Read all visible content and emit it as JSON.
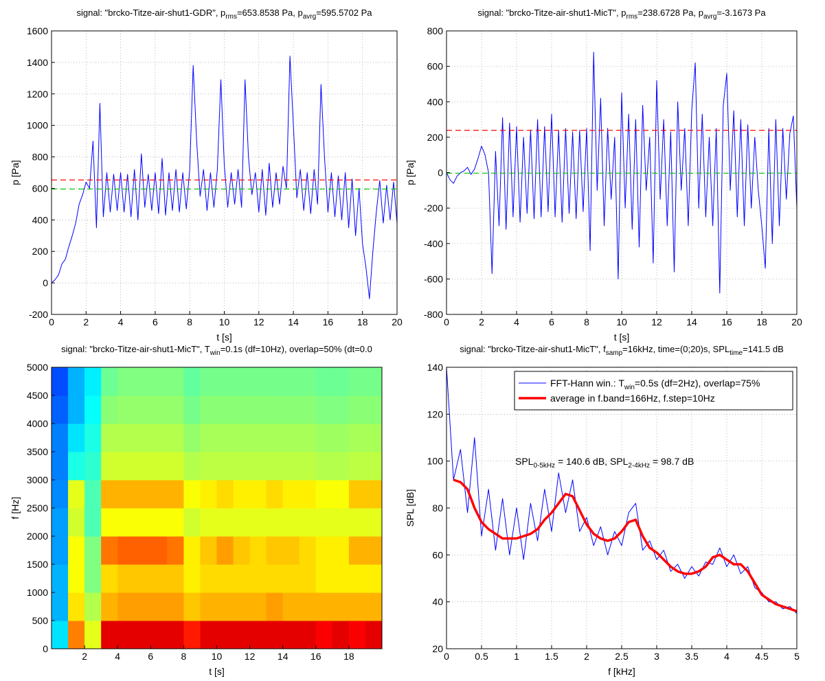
{
  "chart_data": [
    {
      "type": "line",
      "title": [
        "signal: \"brcko-Titze-air-shut1-GDR\",  p",
        "rms",
        "=653.8538 Pa,  p",
        "avrg",
        "=595.5702 Pa"
      ],
      "xlabel": "t [s]",
      "ylabel": "p [Pa]",
      "xlim": [
        0,
        20
      ],
      "ylim": [
        -200,
        1600
      ],
      "xticks": [
        0,
        2,
        4,
        6,
        8,
        10,
        12,
        14,
        16,
        18,
        20
      ],
      "yticks": [
        -200,
        0,
        200,
        400,
        600,
        800,
        1000,
        1200,
        1400,
        1600
      ],
      "grid": true,
      "x": [
        0,
        0.2,
        0.4,
        0.6,
        0.8,
        1,
        1.2,
        1.4,
        1.6,
        1.8,
        2,
        2.2,
        2.4,
        2.6,
        2.8,
        3,
        3.2,
        3.4,
        3.6,
        3.8,
        4,
        4.2,
        4.4,
        4.6,
        4.8,
        5,
        5.2,
        5.4,
        5.6,
        5.8,
        6,
        6.2,
        6.4,
        6.6,
        6.8,
        7,
        7.2,
        7.4,
        7.6,
        7.8,
        8,
        8.2,
        8.4,
        8.6,
        8.8,
        9,
        9.2,
        9.4,
        9.6,
        9.8,
        10,
        10.2,
        10.4,
        10.6,
        10.8,
        11,
        11.2,
        11.4,
        11.6,
        11.8,
        12,
        12.2,
        12.4,
        12.6,
        12.8,
        13,
        13.2,
        13.4,
        13.6,
        13.8,
        14,
        14.2,
        14.4,
        14.6,
        14.8,
        15,
        15.2,
        15.4,
        15.6,
        15.8,
        16,
        16.2,
        16.4,
        16.6,
        16.8,
        17,
        17.2,
        17.4,
        17.6,
        17.8,
        18,
        18.2,
        18.4,
        18.6,
        18.8,
        19,
        19.2,
        19.4,
        19.6,
        19.8,
        20
      ],
      "series": [
        {
          "color": "#0000ff",
          "values": [
            0,
            20,
            50,
            120,
            150,
            230,
            300,
            380,
            500,
            560,
            640,
            600,
            900,
            350,
            1140,
            420,
            700,
            450,
            690,
            460,
            700,
            450,
            690,
            420,
            720,
            400,
            820,
            480,
            690,
            460,
            700,
            440,
            790,
            430,
            700,
            460,
            720,
            450,
            700,
            470,
            720,
            1380,
            900,
            550,
            720,
            460,
            700,
            480,
            720,
            1290,
            750,
            480,
            700,
            500,
            720,
            480,
            1290,
            800,
            560,
            700,
            450,
            720,
            430,
            760,
            480,
            700,
            500,
            740,
            600,
            1440,
            1000,
            540,
            720,
            460,
            700,
            440,
            720,
            500,
            1260,
            800,
            450,
            700,
            420,
            680,
            400,
            700,
            350,
            660,
            300,
            600,
            250,
            100,
            -100,
            200,
            450,
            650,
            380,
            620,
            400,
            640,
            380
          ]
        }
      ],
      "hlines": [
        {
          "value": 653.8538,
          "color": "#ff0000"
        },
        {
          "value": 595.5702,
          "color": "#00cc00"
        }
      ]
    },
    {
      "type": "line",
      "title": [
        "signal: \"brcko-Titze-air-shut1-MicT\",  p",
        "rms",
        "=238.6728 Pa,  p",
        "avrg",
        "=-3.1673 Pa"
      ],
      "xlabel": "t [s]",
      "ylabel": "p [Pa]",
      "xlim": [
        0,
        20
      ],
      "ylim": [
        -800,
        800
      ],
      "xticks": [
        0,
        2,
        4,
        6,
        8,
        10,
        12,
        14,
        16,
        18,
        20
      ],
      "yticks": [
        -800,
        -600,
        -400,
        -200,
        0,
        200,
        400,
        600,
        800
      ],
      "grid": true,
      "x": [
        0,
        0.2,
        0.4,
        0.6,
        0.8,
        1,
        1.2,
        1.4,
        1.6,
        1.8,
        2,
        2.2,
        2.4,
        2.6,
        2.8,
        3,
        3.2,
        3.4,
        3.6,
        3.8,
        4,
        4.2,
        4.4,
        4.6,
        4.8,
        5,
        5.2,
        5.4,
        5.6,
        5.8,
        6,
        6.2,
        6.4,
        6.6,
        6.8,
        7,
        7.2,
        7.4,
        7.6,
        7.8,
        8,
        8.2,
        8.4,
        8.6,
        8.8,
        9,
        9.2,
        9.4,
        9.6,
        9.8,
        10,
        10.2,
        10.4,
        10.6,
        10.8,
        11,
        11.2,
        11.4,
        11.6,
        11.8,
        12,
        12.2,
        12.4,
        12.6,
        12.8,
        13,
        13.2,
        13.4,
        13.6,
        13.8,
        14,
        14.2,
        14.4,
        14.6,
        14.8,
        15,
        15.2,
        15.4,
        15.6,
        15.8,
        16,
        16.2,
        16.4,
        16.6,
        16.8,
        17,
        17.2,
        17.4,
        17.6,
        17.8,
        18,
        18.2,
        18.4,
        18.6,
        18.8,
        19,
        19.2,
        19.4,
        19.6,
        19.8,
        20
      ],
      "series": [
        {
          "color": "#0000ff",
          "values": [
            0,
            -40,
            -60,
            -20,
            0,
            10,
            30,
            -10,
            20,
            80,
            150,
            100,
            0,
            -570,
            120,
            -300,
            310,
            -320,
            280,
            -250,
            260,
            -280,
            200,
            -230,
            240,
            -260,
            300,
            -250,
            260,
            -220,
            330,
            -250,
            240,
            -280,
            250,
            -230,
            230,
            -260,
            240,
            -220,
            250,
            -440,
            680,
            -100,
            420,
            -300,
            250,
            -150,
            200,
            -600,
            450,
            -200,
            330,
            -320,
            300,
            -420,
            380,
            -100,
            200,
            -510,
            520,
            -150,
            300,
            -300,
            230,
            -560,
            400,
            -100,
            250,
            -300,
            350,
            620,
            -200,
            330,
            -250,
            200,
            -300,
            250,
            -680,
            380,
            560,
            -100,
            350,
            -250,
            300,
            -300,
            270,
            -200,
            200,
            -100,
            -300,
            -540,
            250,
            -400,
            300,
            -300,
            250,
            -150,
            220,
            320,
            -200
          ]
        }
      ],
      "hlines": [
        {
          "value": 238.6728,
          "color": "#ff0000"
        },
        {
          "value": -3.1673,
          "color": "#00cc00"
        }
      ]
    },
    {
      "type": "heatmap",
      "title": [
        "signal: \"brcko-Titze-air-shut1-MicT\",  T",
        "win",
        "=0.1s (df=10Hz), overlap=50% (dt=0.0"
      ],
      "xlabel": "t [s]",
      "ylabel": "f [Hz]",
      "xlim": [
        0,
        20
      ],
      "ylim": [
        0,
        5000
      ],
      "xticks": [
        2,
        4,
        6,
        8,
        10,
        12,
        14,
        16,
        18
      ],
      "yticks": [
        0,
        500,
        1000,
        1500,
        2000,
        2500,
        3000,
        3500,
        4000,
        4500,
        5000
      ],
      "colormap": "jet",
      "z": [
        [
          0.35,
          0.75,
          0.6,
          0.9,
          0.9,
          0.9,
          0.9,
          0.9,
          0.85,
          0.9,
          0.9,
          0.9,
          0.9,
          0.9,
          0.9,
          0.9,
          0.88,
          0.9,
          0.88,
          0.9
        ],
        [
          0.3,
          0.65,
          0.55,
          0.7,
          0.72,
          0.72,
          0.72,
          0.72,
          0.68,
          0.7,
          0.7,
          0.7,
          0.7,
          0.72,
          0.7,
          0.7,
          0.7,
          0.7,
          0.7,
          0.7
        ],
        [
          0.3,
          0.62,
          0.5,
          0.66,
          0.68,
          0.68,
          0.68,
          0.68,
          0.64,
          0.66,
          0.66,
          0.66,
          0.66,
          0.66,
          0.66,
          0.66,
          0.64,
          0.64,
          0.64,
          0.64
        ],
        [
          0.28,
          0.62,
          0.5,
          0.76,
          0.78,
          0.78,
          0.78,
          0.76,
          0.64,
          0.68,
          0.72,
          0.68,
          0.66,
          0.68,
          0.68,
          0.66,
          0.64,
          0.64,
          0.7,
          0.7
        ],
        [
          0.28,
          0.58,
          0.45,
          0.62,
          0.62,
          0.62,
          0.62,
          0.62,
          0.58,
          0.6,
          0.6,
          0.6,
          0.6,
          0.6,
          0.6,
          0.6,
          0.6,
          0.6,
          0.6,
          0.6
        ],
        [
          0.26,
          0.6,
          0.45,
          0.7,
          0.7,
          0.7,
          0.7,
          0.7,
          0.62,
          0.64,
          0.66,
          0.64,
          0.64,
          0.66,
          0.64,
          0.64,
          0.62,
          0.62,
          0.68,
          0.68
        ],
        [
          0.25,
          0.4,
          0.42,
          0.58,
          0.58,
          0.58,
          0.58,
          0.58,
          0.55,
          0.56,
          0.56,
          0.56,
          0.56,
          0.56,
          0.56,
          0.56,
          0.55,
          0.55,
          0.56,
          0.56
        ],
        [
          0.25,
          0.35,
          0.4,
          0.55,
          0.55,
          0.55,
          0.55,
          0.55,
          0.52,
          0.54,
          0.54,
          0.54,
          0.54,
          0.54,
          0.54,
          0.54,
          0.53,
          0.53,
          0.54,
          0.54
        ],
        [
          0.22,
          0.3,
          0.38,
          0.51,
          0.52,
          0.52,
          0.52,
          0.52,
          0.49,
          0.51,
          0.51,
          0.51,
          0.51,
          0.51,
          0.51,
          0.51,
          0.5,
          0.5,
          0.51,
          0.51
        ],
        [
          0.2,
          0.3,
          0.36,
          0.48,
          0.5,
          0.5,
          0.5,
          0.5,
          0.47,
          0.49,
          0.49,
          0.49,
          0.49,
          0.49,
          0.49,
          0.49,
          0.48,
          0.48,
          0.49,
          0.49
        ]
      ]
    },
    {
      "type": "line",
      "title": [
        "signal: \"brcko-Titze-air-shut1-MicT\",  f",
        "samp",
        "=16kHz,  time=(0;20)s,  SPL",
        "time",
        "=141.5 dB"
      ],
      "xlabel": "f [kHz]",
      "ylabel": "SPL [dB]",
      "xlim": [
        0,
        5
      ],
      "ylim": [
        20,
        140
      ],
      "xticks": [
        0,
        0.5,
        1,
        1.5,
        2,
        2.5,
        3,
        3.5,
        4,
        4.5,
        5
      ],
      "yticks": [
        20,
        40,
        60,
        80,
        100,
        120,
        140
      ],
      "grid": true,
      "legend": "upper right",
      "annotation": [
        "SPL",
        "0-5kHz",
        " = 140.6 dB,   SPL",
        "2-4kHz",
        " = 98.7 dB"
      ],
      "series": [
        {
          "name": [
            "FFT-Hann win.: T",
            "win",
            "=0.5s (df=2Hz), overlap=75%"
          ],
          "color": "#0000ff",
          "width": 1,
          "x": [
            0,
            0.1,
            0.2,
            0.3,
            0.4,
            0.5,
            0.6,
            0.7,
            0.8,
            0.9,
            1,
            1.1,
            1.2,
            1.3,
            1.4,
            1.5,
            1.6,
            1.7,
            1.8,
            1.9,
            2,
            2.1,
            2.2,
            2.3,
            2.4,
            2.5,
            2.6,
            2.7,
            2.8,
            2.9,
            3,
            3.1,
            3.2,
            3.3,
            3.4,
            3.5,
            3.6,
            3.7,
            3.8,
            3.9,
            4,
            4.1,
            4.2,
            4.3,
            4.4,
            4.5,
            4.6,
            4.7,
            4.8,
            4.9,
            5
          ],
          "values": [
            140,
            92,
            105,
            78,
            110,
            68,
            88,
            62,
            84,
            60,
            80,
            58,
            82,
            66,
            88,
            70,
            95,
            78,
            92,
            70,
            76,
            64,
            72,
            60,
            70,
            64,
            78,
            82,
            62,
            66,
            58,
            62,
            53,
            56,
            50,
            55,
            51,
            57,
            56,
            63,
            55,
            60,
            52,
            55,
            46,
            44,
            40,
            40,
            37,
            38,
            35
          ]
        },
        {
          "name": [
            "average in f.band=166Hz, f.step=10Hz"
          ],
          "color": "#ff0000",
          "width": 3.5,
          "x": [
            0.1,
            0.2,
            0.3,
            0.4,
            0.5,
            0.6,
            0.7,
            0.8,
            0.9,
            1,
            1.1,
            1.2,
            1.3,
            1.4,
            1.5,
            1.6,
            1.7,
            1.8,
            1.9,
            2,
            2.1,
            2.2,
            2.3,
            2.4,
            2.5,
            2.6,
            2.7,
            2.8,
            2.9,
            3,
            3.1,
            3.2,
            3.3,
            3.4,
            3.5,
            3.6,
            3.7,
            3.8,
            3.9,
            4,
            4.1,
            4.2,
            4.3,
            4.4,
            4.5,
            4.6,
            4.7,
            4.8,
            4.9,
            5
          ],
          "values": [
            92,
            91,
            88,
            80,
            74,
            71,
            69,
            67,
            67,
            67,
            68,
            69,
            71,
            75,
            78,
            82,
            86,
            85,
            79,
            73,
            69,
            67,
            66,
            67,
            70,
            74,
            75,
            68,
            63,
            61,
            58,
            55,
            53,
            52,
            52,
            53,
            55,
            59,
            60,
            58,
            56,
            56,
            53,
            48,
            43,
            41,
            39,
            38,
            37,
            36
          ]
        }
      ]
    }
  ]
}
